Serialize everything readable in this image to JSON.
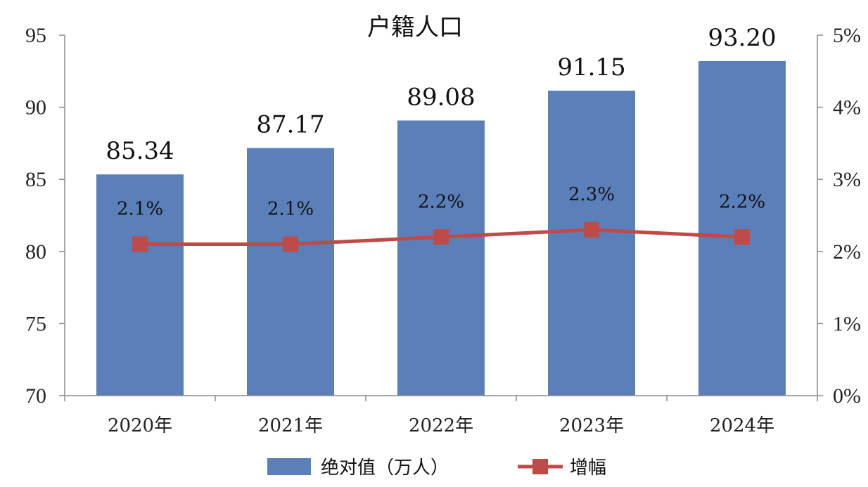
{
  "chart_data": {
    "type": "bar",
    "title": "户籍人口",
    "categories": [
      "2020年",
      "2021年",
      "2022年",
      "2023年",
      "2024年"
    ],
    "series": [
      {
        "name": "绝对值（万人）",
        "type": "bar",
        "axis": "left",
        "values": [
          85.34,
          87.17,
          89.08,
          91.15,
          93.2
        ],
        "labels": [
          "85.34",
          "87.17",
          "89.08",
          "91.15",
          "93.20"
        ]
      },
      {
        "name": "增幅",
        "type": "line",
        "axis": "right",
        "values": [
          2.1,
          2.1,
          2.2,
          2.3,
          2.2
        ],
        "labels": [
          "2.1%",
          "2.1%",
          "2.2%",
          "2.3%",
          "2.2%"
        ]
      }
    ],
    "ylim_left": [
      70,
      95
    ],
    "yticks_left": [
      "70",
      "75",
      "80",
      "85",
      "90",
      "95"
    ],
    "ylim_right": [
      0,
      5
    ],
    "yticks_right": [
      "0%",
      "1%",
      "2%",
      "3%",
      "4%",
      "5%"
    ],
    "grid": false,
    "legend": "bottom",
    "colors": {
      "bar": "#5b7fb8",
      "line": "#be4b48"
    }
  }
}
